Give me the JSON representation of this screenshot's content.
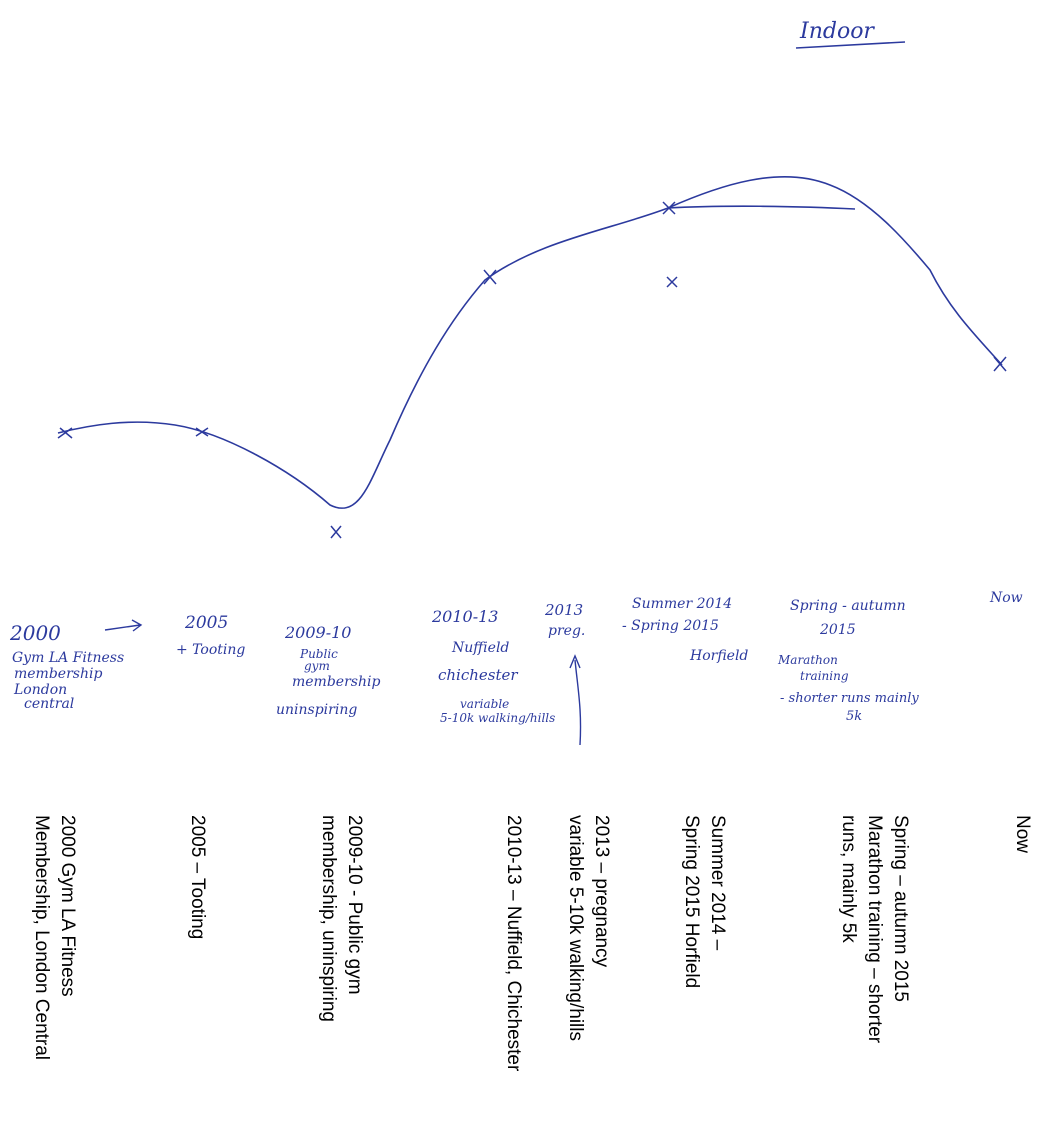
{
  "sketch": {
    "title": "Indoor",
    "ink_color": "#2c3a9e",
    "text_color": "#000000",
    "now_mark_label": "Now",
    "handwritten_labels": [
      [
        "2000",
        "Gym LA Fitness",
        "membership",
        "London",
        "central"
      ],
      [
        "2005",
        "+ Tooting"
      ],
      [
        "2009-10",
        "Public",
        "gym",
        "membership",
        "uninspiring"
      ],
      [
        "2010-13",
        "Nuffield",
        "chichester",
        "variable",
        "5-10k walking/hills"
      ],
      [
        "2013",
        "preg."
      ],
      [
        "Summer 2014",
        "- Spring 2015",
        "Horfield"
      ],
      [
        "Spring - autumn",
        "2015",
        "Marathon",
        "training",
        "- shorter runs mainly",
        "5k"
      ],
      [
        "Now"
      ]
    ]
  },
  "typed_labels": [
    {
      "lines": [
        "2000 Gym LA Fitness",
        "Membership, London Central"
      ]
    },
    {
      "lines": [
        "2005 – Tooting"
      ]
    },
    {
      "lines": [
        "2009-10  - Public gym",
        "membership, uninspiring"
      ]
    },
    {
      "lines": [
        "2010-13 – Nuffield, Chichester"
      ]
    },
    {
      "lines": [
        "2013 – pregnancy",
        "variable 5-10k walking/hills"
      ]
    },
    {
      "lines": [
        "Summer 2014 –",
        "Spring 2015 Horfield"
      ]
    },
    {
      "lines": [
        "Spring – autumn 2015",
        "Marathon training – shorter",
        "runs, mainly 5k"
      ]
    },
    {
      "lines": [
        "Now"
      ]
    }
  ]
}
